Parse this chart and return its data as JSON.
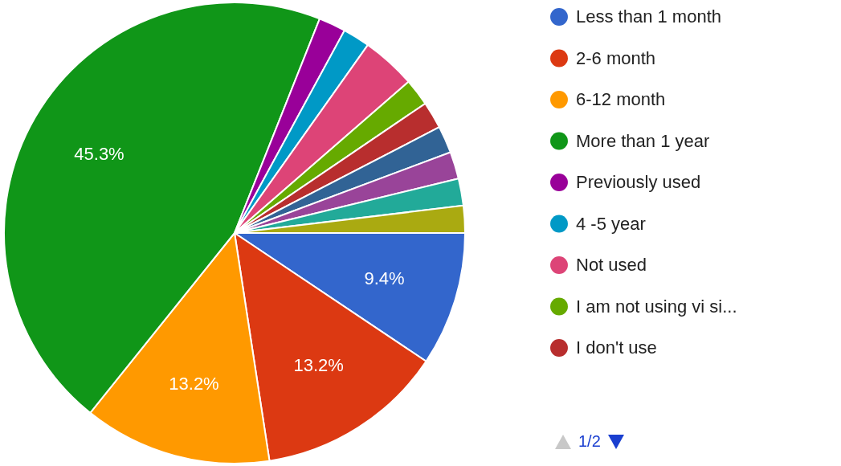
{
  "chart_data": {
    "type": "pie",
    "categories": [
      "Less than 1 month",
      "2-6 month",
      "6-12 month",
      "More than 1 year",
      "Previously used",
      "4 -5 year",
      "Not used",
      "I am not using vi si...",
      "I don't use",
      null,
      null,
      null,
      null
    ],
    "values": [
      9.4,
      13.2,
      13.2,
      45.3,
      1.9,
      1.9,
      3.8,
      1.9,
      1.9,
      1.9,
      1.9,
      1.9,
      1.9
    ],
    "colors": [
      "#3366cc",
      "#dc3912",
      "#ff9900",
      "#109618",
      "#990099",
      "#0099c6",
      "#dd4477",
      "#66aa00",
      "#b82e2e",
      "#316395",
      "#994499",
      "#22aa99",
      "#aaaa11"
    ],
    "value_labels": [
      "9.4%",
      "13.2%",
      "13.2%",
      "45.3%",
      null,
      null,
      null,
      null,
      null,
      null,
      null,
      null,
      null
    ],
    "legend": "right",
    "annotations": [
      "1/2"
    ]
  }
}
